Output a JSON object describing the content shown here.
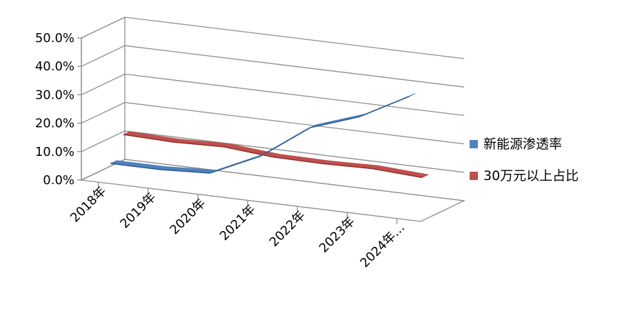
{
  "chart_data": {
    "type": "line",
    "categories": [
      "2018年",
      "2019年",
      "2020年",
      "2021年",
      "2022年",
      "2023年",
      "2024年…"
    ],
    "series": [
      {
        "name": "新能源渗透率",
        "values": [
          4.5,
          4.5,
          5.4,
          13.4,
          25.6,
          31.6,
          40.9
        ],
        "color": "#4f81bd"
      },
      {
        "name": "30万元以上占比",
        "values": [
          12.5,
          12.0,
          12.5,
          11.0,
          10.8,
          11.2,
          10.2
        ],
        "color": "#c0504d"
      }
    ],
    "yticks": [
      "0.0%",
      "10.0%",
      "20.0%",
      "30.0%",
      "40.0%",
      "50.0%"
    ],
    "ylim": [
      0,
      50
    ],
    "grid": true,
    "legend_position": "right"
  }
}
